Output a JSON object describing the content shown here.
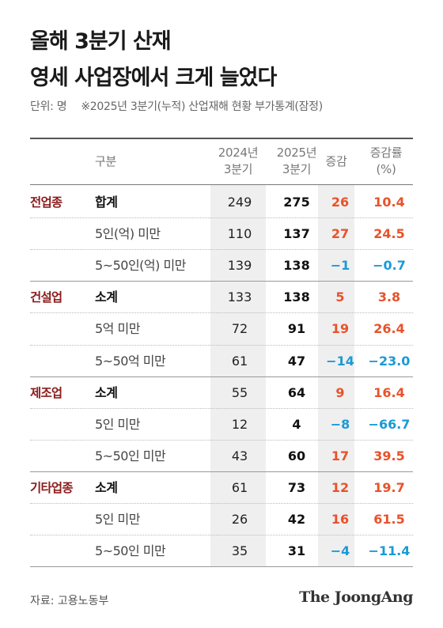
{
  "title_line1": "올해 3분기 산재",
  "title_line2": "영세 사업장에서 크게 늘었다",
  "unit": "단위: 명",
  "note": "※2025년 3분기(누적) 산업재해 현황 부가통계(잠정)",
  "headers": {
    "category": "구분",
    "y2024_line1": "2024년",
    "y2024_line2": "3분기",
    "y2025_line1": "2025년",
    "y2025_line2": "3분기",
    "change": "증감",
    "rate_line1": "증감률",
    "rate_line2": "(%)"
  },
  "rows": [
    {
      "category": "전업종",
      "item": "합계",
      "v2024": "249",
      "v2025": "275",
      "change": "26",
      "rate": "10.4"
    },
    {
      "category": "",
      "item": "5인(억) 미만",
      "v2024": "110",
      "v2025": "137",
      "change": "27",
      "rate": "24.5"
    },
    {
      "category": "",
      "item": "5~50인(억) 미만",
      "v2024": "139",
      "v2025": "138",
      "change": "−1",
      "rate": "−0.7"
    },
    {
      "category": "건설업",
      "item": "소계",
      "v2024": "133",
      "v2025": "138",
      "change": "5",
      "rate": "3.8"
    },
    {
      "category": "",
      "item": "5억 미만",
      "v2024": "72",
      "v2025": "91",
      "change": "19",
      "rate": "26.4"
    },
    {
      "category": "",
      "item": "5~50억 미만",
      "v2024": "61",
      "v2025": "47",
      "change": "−14",
      "rate": "−23.0"
    },
    {
      "category": "제조업",
      "item": "소계",
      "v2024": "55",
      "v2025": "64",
      "change": "9",
      "rate": "16.4"
    },
    {
      "category": "",
      "item": "5인 미만",
      "v2024": "12",
      "v2025": "4",
      "change": "−8",
      "rate": "−66.7"
    },
    {
      "category": "",
      "item": "5~50인 미만",
      "v2024": "43",
      "v2025": "60",
      "change": "17",
      "rate": "39.5"
    },
    {
      "category": "기타업종",
      "item": "소계",
      "v2024": "61",
      "v2025": "73",
      "change": "12",
      "rate": "19.7"
    },
    {
      "category": "",
      "item": "5인 미만",
      "v2024": "26",
      "v2025": "42",
      "change": "16",
      "rate": "61.5"
    },
    {
      "category": "",
      "item": "5~50인 미만",
      "v2024": "35",
      "v2025": "31",
      "change": "−4",
      "rate": "−11.4"
    }
  ],
  "source": "자료: 고용노동부",
  "logo": "The JoongAng",
  "colors": {
    "category": "#8c1c1c",
    "increase": "#e8522a",
    "decrease": "#1a9ad6",
    "shade": "#efefef"
  }
}
